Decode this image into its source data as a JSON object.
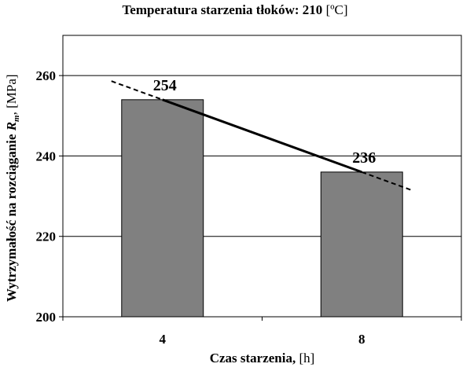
{
  "chart_data": {
    "type": "bar",
    "title": "Temperatura starzenia tłoków: 210",
    "title_unit": "[ºC]",
    "xlabel": "Czas starzenia,",
    "xlabel_unit": "[h]",
    "ylabel_prefix": "Wytrzymałość na rozciąganie",
    "ylabel_var": "R",
    "ylabel_sub": "m",
    "ylabel_unit": ", [MPa]",
    "categories": [
      "4",
      "8"
    ],
    "values": [
      254,
      236
    ],
    "data_labels": [
      "254",
      "236"
    ],
    "ylim": [
      200,
      270
    ],
    "yticks": [
      200,
      220,
      240,
      260
    ],
    "ytick_labels": [
      "200",
      "220",
      "240",
      "260"
    ],
    "grid": true,
    "trendline": {
      "style": "dashed-extended",
      "points": [
        {
          "x": "4",
          "y": 254
        },
        {
          "x": "8",
          "y": 236
        }
      ]
    },
    "colors": {
      "bar_fill": "#808080",
      "bar_stroke": "#000000",
      "trend": "#000000",
      "grid": "#000000"
    }
  }
}
